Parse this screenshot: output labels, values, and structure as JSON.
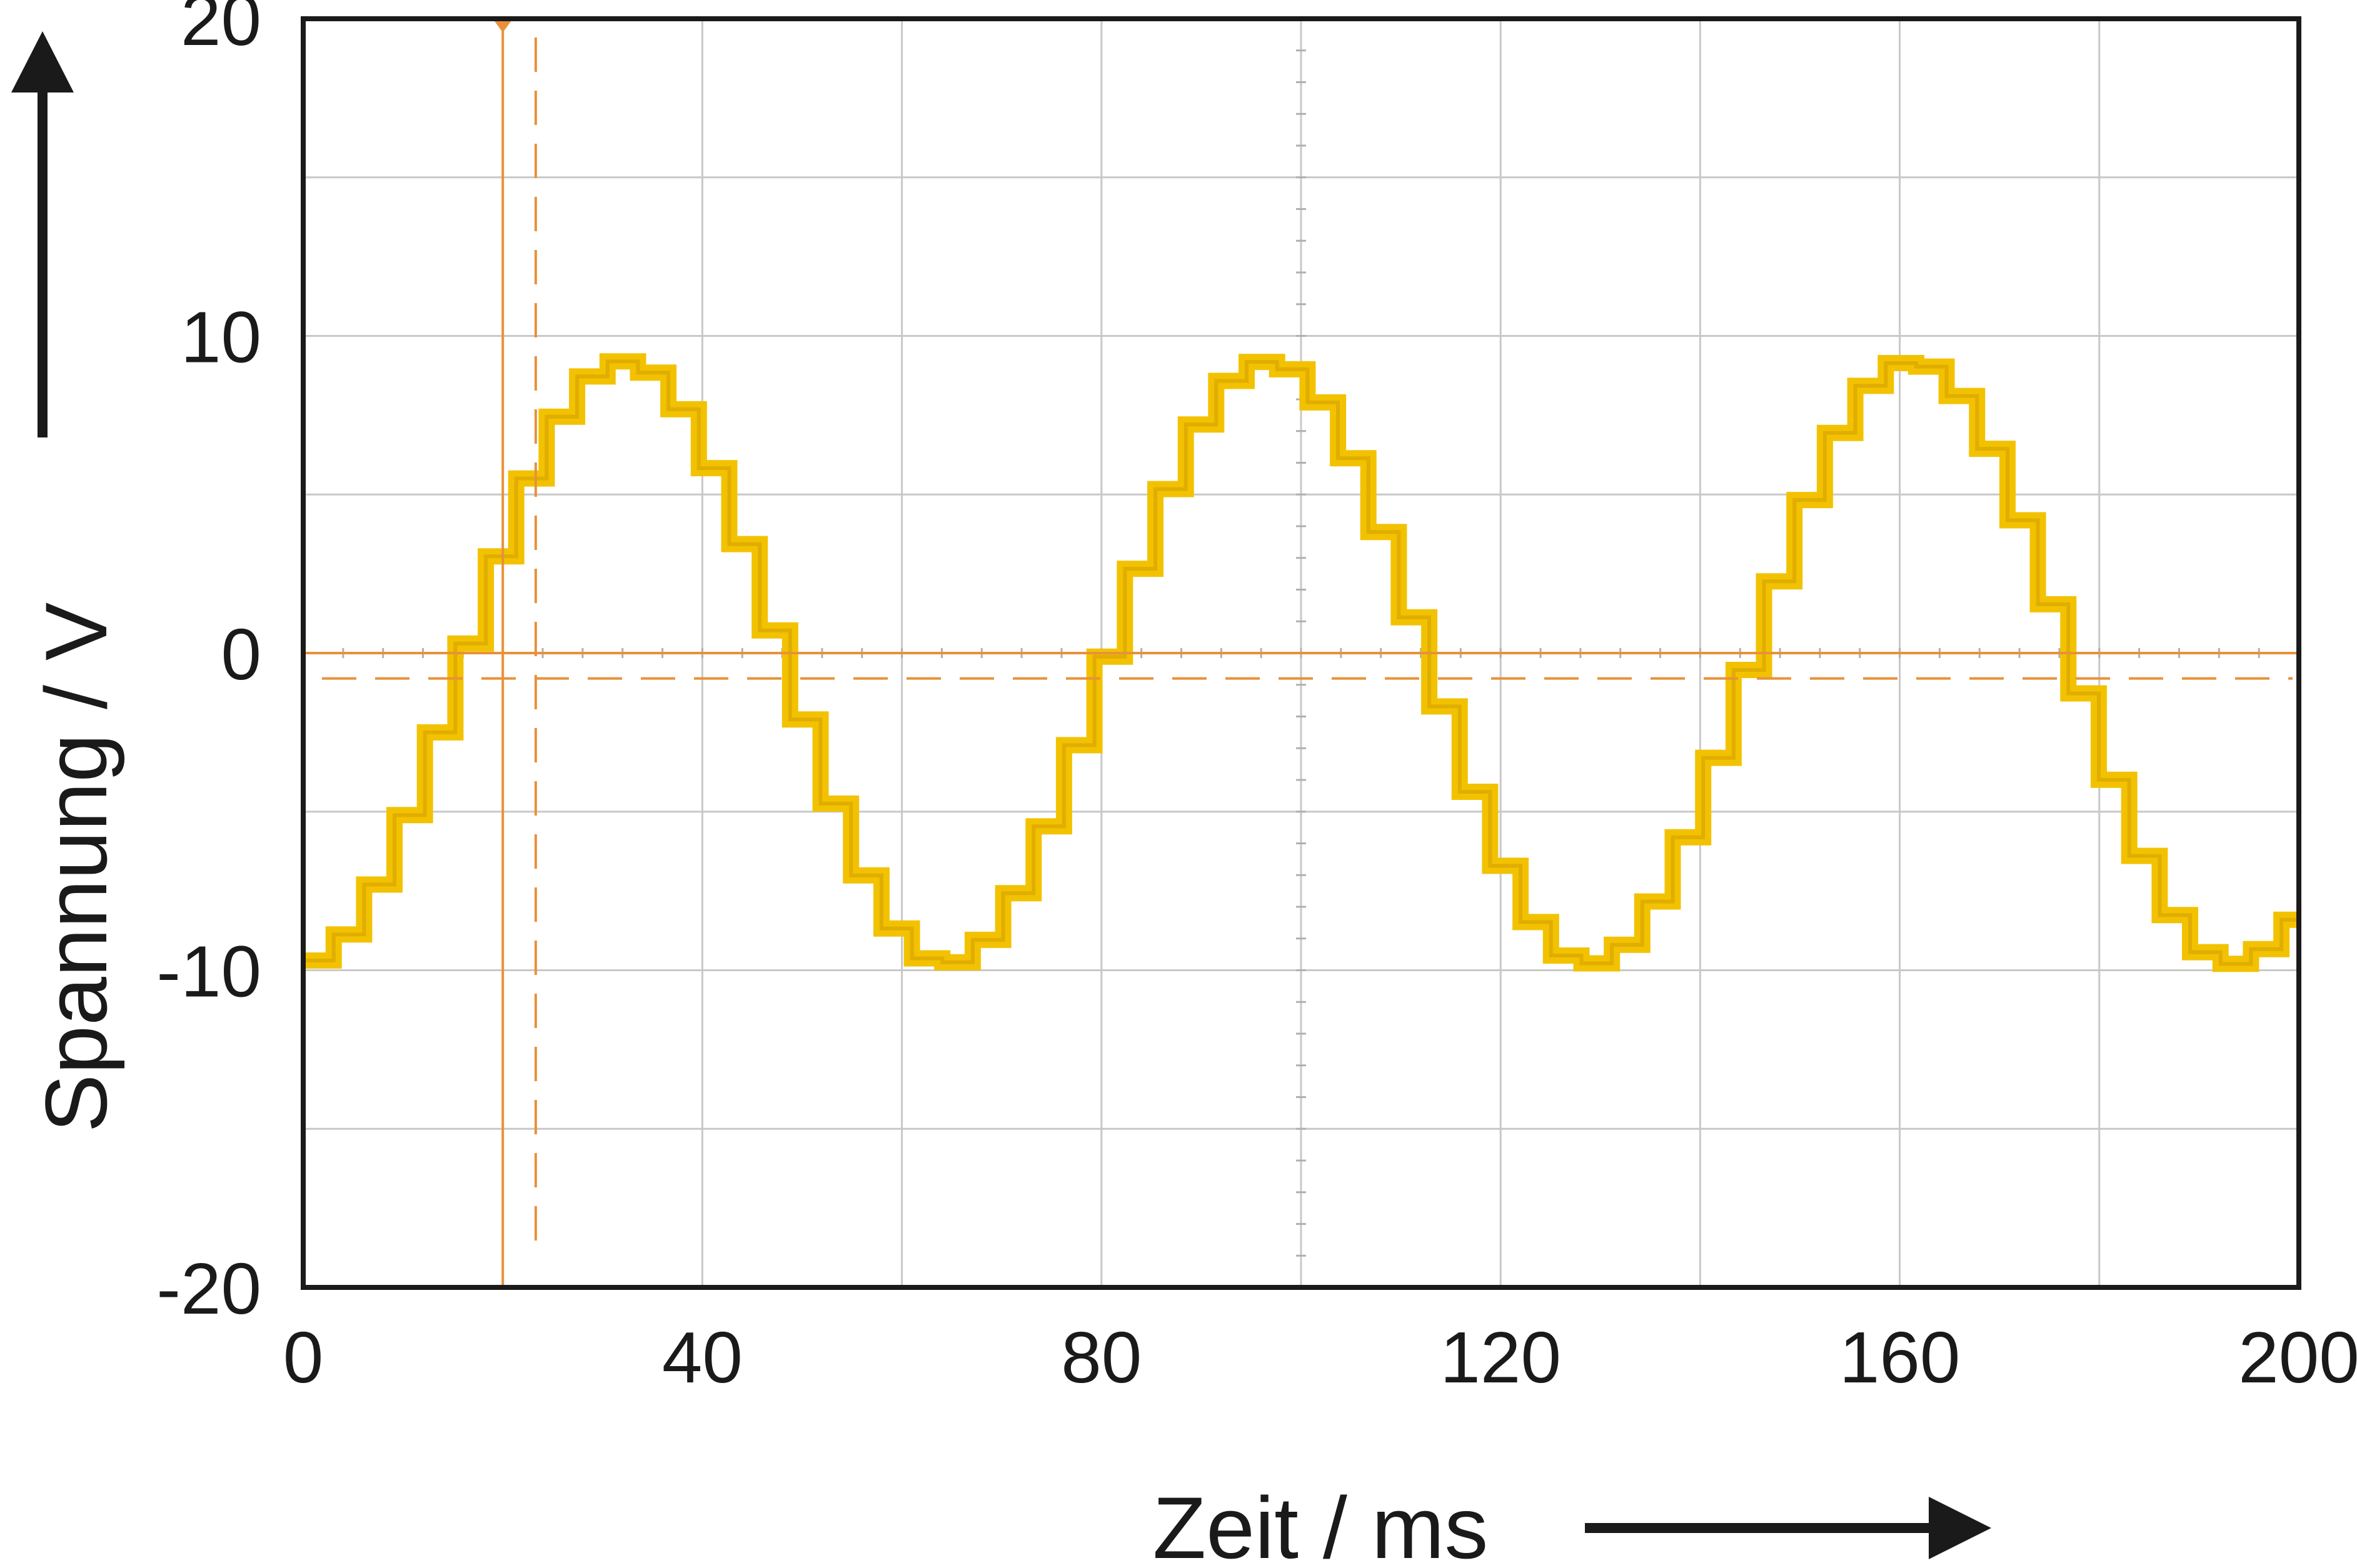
{
  "chart_data": {
    "type": "line",
    "xlabel": "Zeit / ms",
    "ylabel": "Spannung / V",
    "xlim": [
      0,
      200
    ],
    "ylim": [
      -20,
      20
    ],
    "x_ticks": [
      0,
      40,
      80,
      120,
      160,
      200
    ],
    "x_tick_labels": [
      "0",
      "40",
      "80",
      "120",
      "160",
      "200"
    ],
    "y_ticks": [
      -20,
      -10,
      0,
      10,
      20
    ],
    "y_tick_labels": [
      "-20",
      "-10",
      "0",
      "10",
      "20"
    ],
    "grid": true,
    "x_grid_step": 20,
    "y_grid_step": 5,
    "series": [
      {
        "color": "#f2c200",
        "style": "staircase sine",
        "amplitude": 9.5,
        "period": 64.5,
        "offset": -0.3,
        "x": [
          0,
          8,
          16,
          20,
          24,
          32,
          40,
          48,
          56,
          64,
          72,
          80,
          88,
          96,
          104,
          112,
          120,
          128,
          136,
          144,
          152,
          160,
          168,
          176,
          184,
          192,
          200
        ],
        "y": [
          -9.8,
          -7.6,
          -1.5,
          3.5,
          6.5,
          9.3,
          6.2,
          -0.3,
          -6.6,
          -9.8,
          -7.4,
          -1.0,
          5.4,
          9.3,
          6.6,
          0.5,
          -6.1,
          -9.8,
          -7.2,
          -0.5,
          5.9,
          9.2,
          6.5,
          0.3,
          -6.4,
          -9.8,
          -8.1
        ]
      }
    ],
    "cursors": {
      "color": "#e8913a",
      "vertical_solid_x": 20,
      "vertical_dashed_x": 23.3,
      "horizontal_solid_y": 0,
      "horizontal_dashed_y": -0.8
    }
  },
  "colors": {
    "grid": "#c8c8c8",
    "frame": "#1a1a1a",
    "signal": "#f2c200",
    "cursor": "#e8913a"
  }
}
